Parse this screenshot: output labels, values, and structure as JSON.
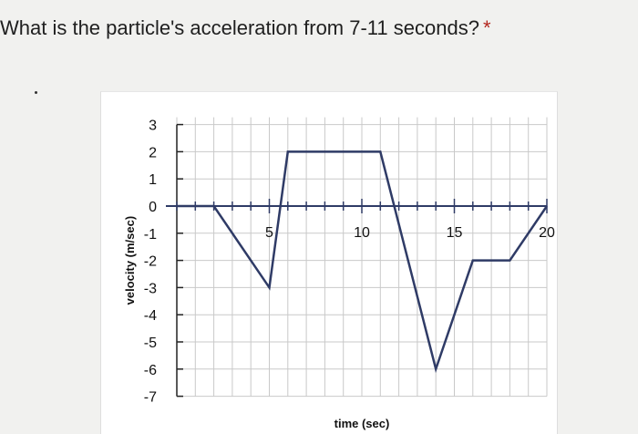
{
  "question": {
    "text": "What is the particle's acceleration from 7-11 seconds?",
    "required_marker": "*"
  },
  "chart_data": {
    "type": "line",
    "xlabel": "time (sec)",
    "ylabel": "velocity (m/sec)",
    "xlim": [
      0,
      20
    ],
    "ylim": [
      -7,
      3
    ],
    "x_tick_labels": [
      "5",
      "10",
      "15",
      "20"
    ],
    "x_ticks": [
      5,
      10,
      15,
      20
    ],
    "y_ticks": [
      3,
      2,
      1,
      0,
      -1,
      -2,
      -3,
      -4,
      -5,
      -6,
      -7
    ],
    "y_tick_labels": [
      "3",
      "2",
      "1",
      "0",
      "-1",
      "-2",
      "-3",
      "-4",
      "-5",
      "-6",
      "-7"
    ],
    "grid": true,
    "series": [
      {
        "x": [
          0,
          2,
          5,
          6,
          11,
          14,
          16,
          18,
          20
        ],
        "y": [
          0,
          0,
          -3,
          2,
          2,
          -6,
          -2,
          -2,
          0
        ]
      }
    ],
    "colors": {
      "line": "#2f3b66",
      "grid": "#c9c9c9",
      "axis": "#2f3b66"
    }
  }
}
